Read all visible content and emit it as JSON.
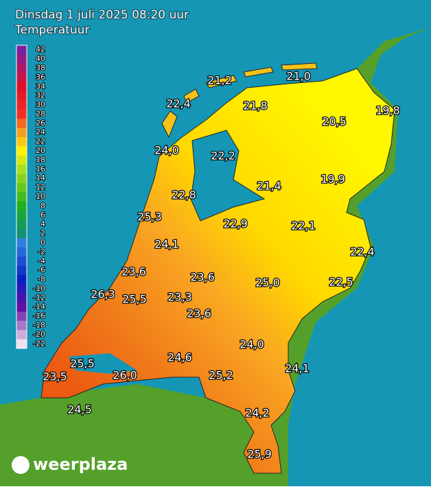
{
  "header": {
    "title": "Dinsdag 1 juli 2025 08:20 uur",
    "subtitle": "Temperatuur"
  },
  "legend": {
    "ticks": [
      42,
      40,
      38,
      36,
      34,
      32,
      30,
      28,
      26,
      24,
      22,
      20,
      18,
      16,
      14,
      12,
      10,
      8,
      6,
      4,
      2,
      0,
      -2,
      -4,
      -6,
      -8,
      -10,
      -12,
      -14,
      -16,
      -18,
      -20,
      -22
    ]
  },
  "stations": [
    "21,2",
    "21,0",
    "22,4",
    "21,8",
    "19,8",
    "20,5",
    "24,0",
    "22,2",
    "19,9",
    "21,4",
    "22,8",
    "25,3",
    "22,9",
    "22,1",
    "24,1",
    "22,4",
    "23,6",
    "23,6",
    "25,0",
    "22,5",
    "26,3",
    "25,5",
    "23,3",
    "23,6",
    "24,0",
    "24,6",
    "25,5",
    "24,1",
    "26,0",
    "25,2",
    "23,5",
    "24,5",
    "24,2",
    "25,9"
  ],
  "logo": "weerplaza"
}
